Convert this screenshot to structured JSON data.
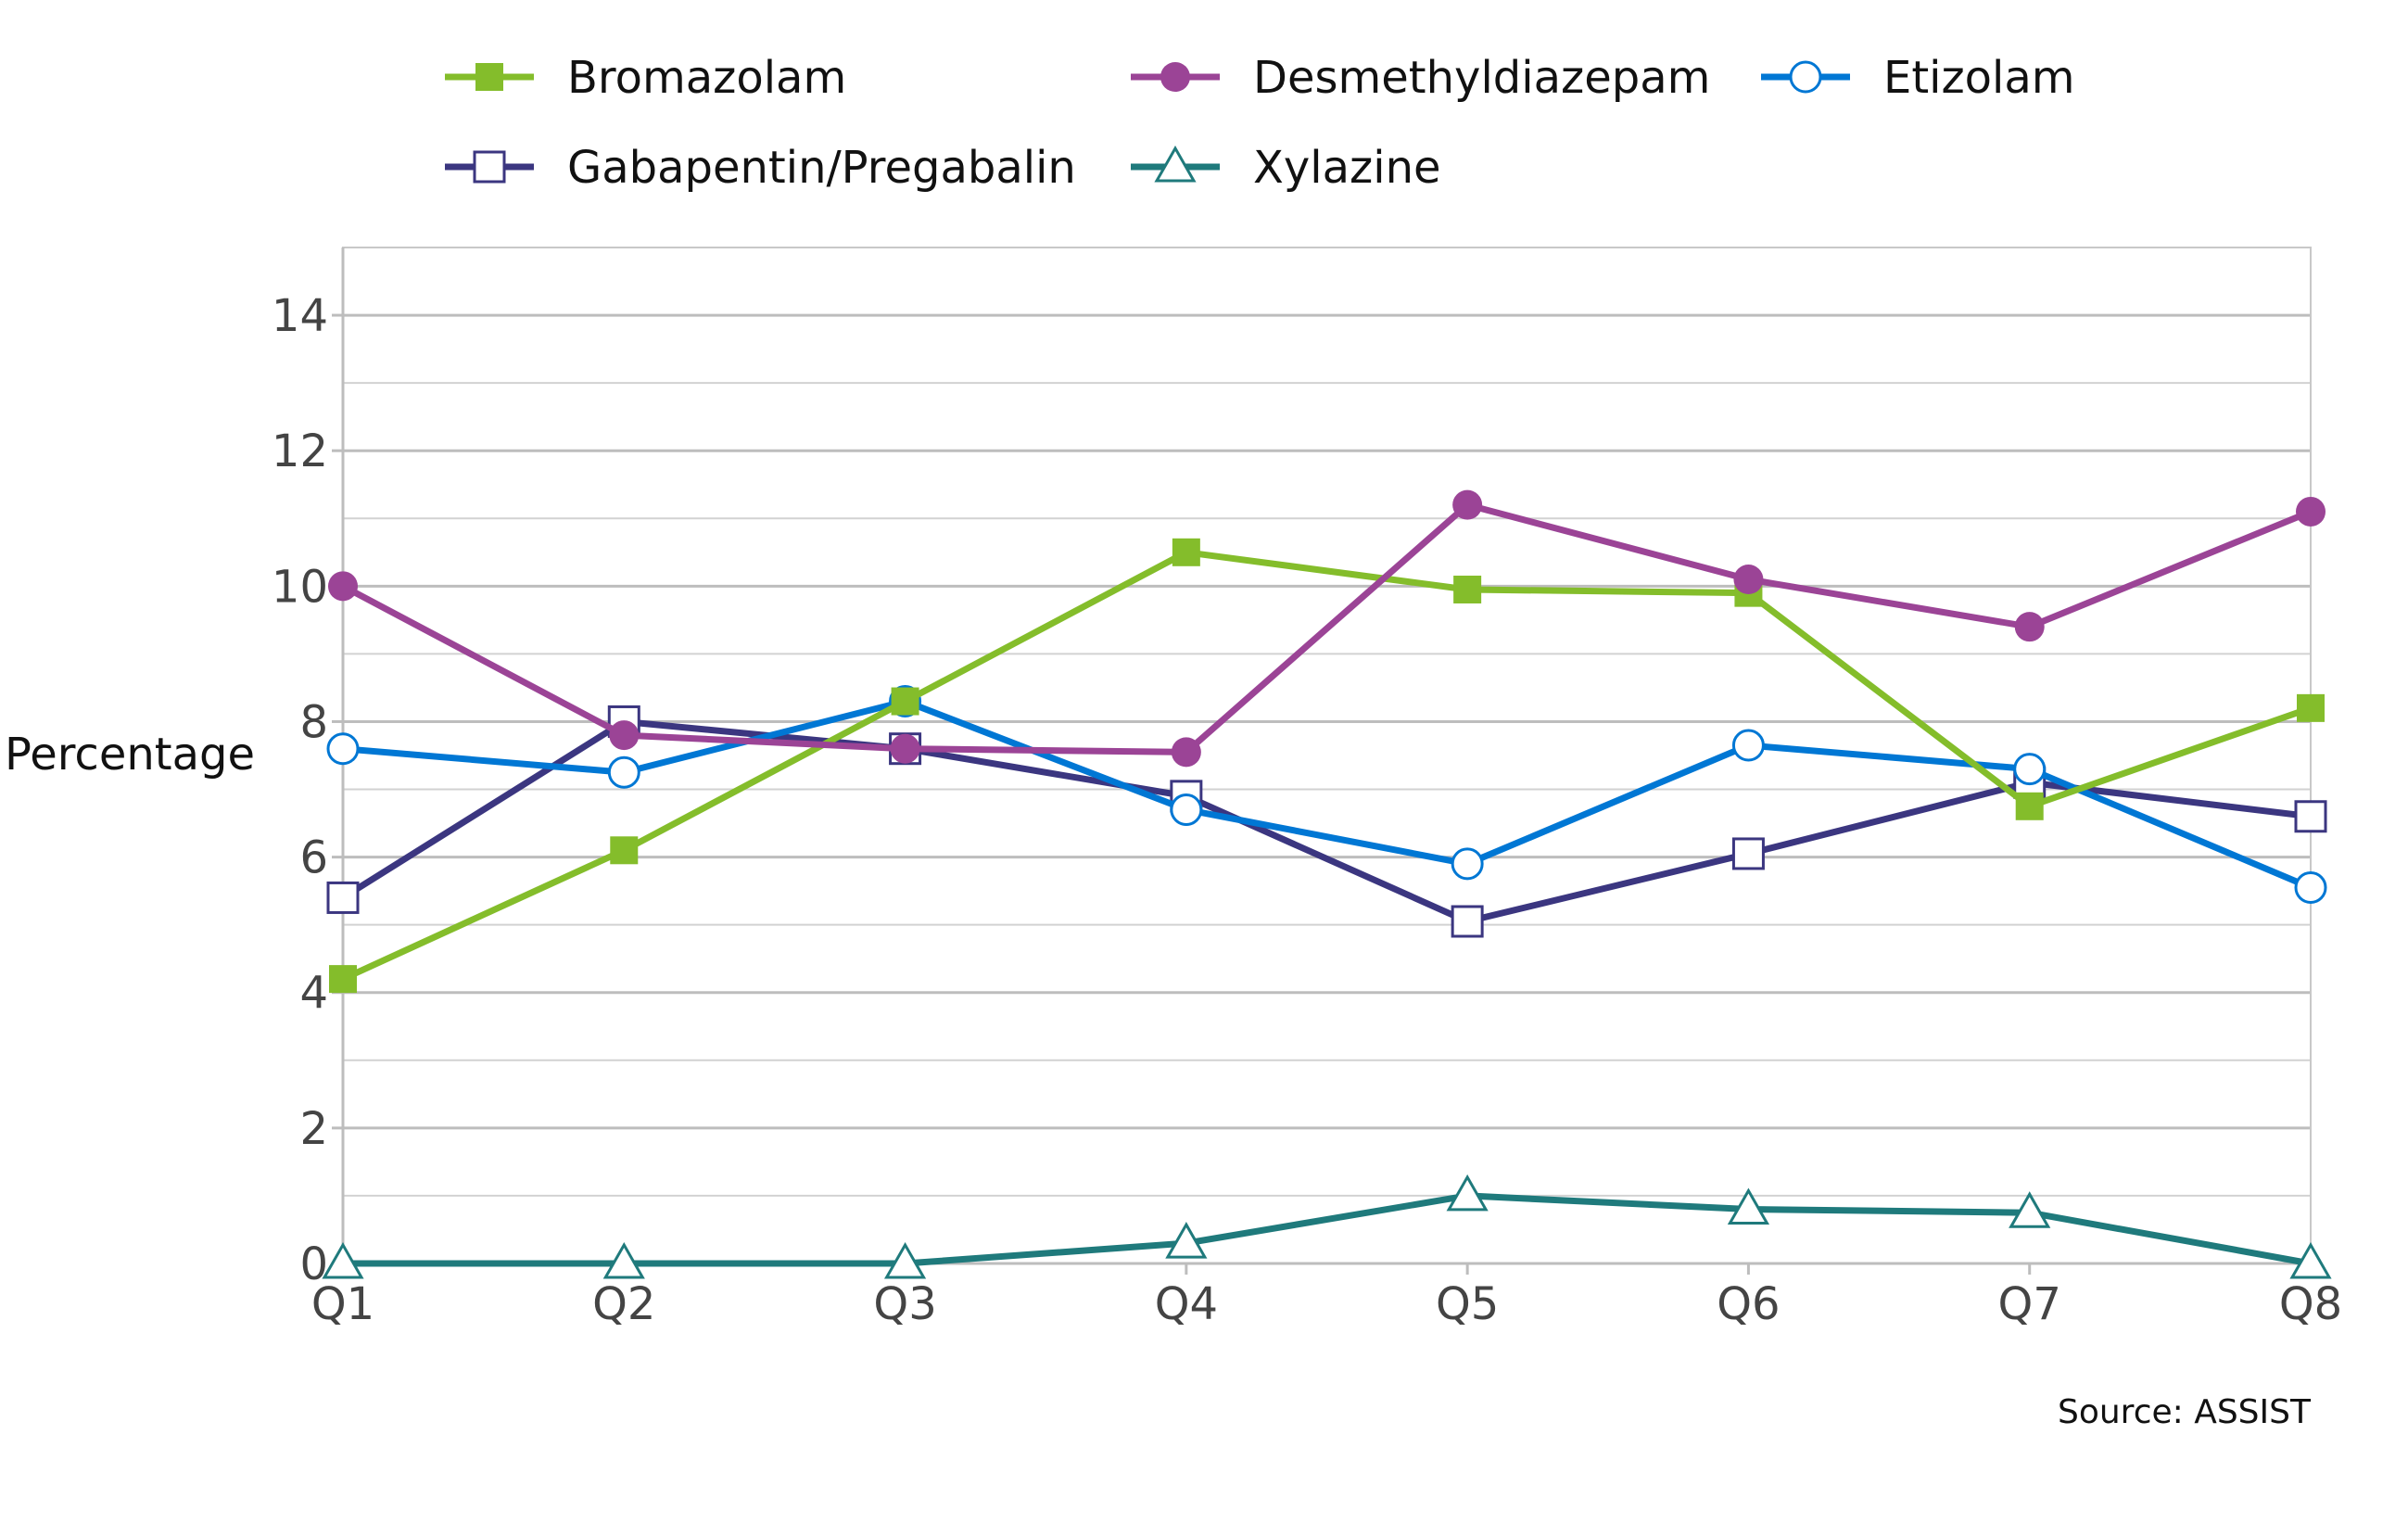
{
  "chart_data": {
    "type": "line",
    "title": "",
    "xlabel": "",
    "ylabel": "Percentage",
    "ylim": [
      0,
      15
    ],
    "yticks": [
      0,
      2,
      4,
      6,
      8,
      10,
      12,
      14
    ],
    "ytick_labels": [
      "0",
      "2",
      "4",
      "6",
      "8",
      "10",
      "12",
      "14"
    ],
    "grid": true,
    "legend_position": "top",
    "categories": [
      "Q1",
      "Q2",
      "Q3",
      "Q4",
      "Q5",
      "Q6",
      "Q7",
      "Q8"
    ],
    "series": [
      {
        "name": "Bromazolam",
        "color": "#84bd2b",
        "marker": "filled-square",
        "values": [
          4.2,
          6.1,
          8.3,
          10.5,
          9.95,
          9.9,
          6.75,
          8.2
        ]
      },
      {
        "name": "Desmethyldiazepam",
        "color": "#9b4496",
        "marker": "filled-circle",
        "values": [
          10.0,
          7.8,
          7.6,
          7.55,
          11.2,
          10.1,
          9.4,
          11.1
        ]
      },
      {
        "name": "Etizolam",
        "color": "#0077d4",
        "marker": "open-circle",
        "values": [
          7.6,
          7.25,
          8.3,
          6.7,
          5.9,
          7.65,
          7.3,
          5.55
        ]
      },
      {
        "name": "Gabapentin/Pregabalin",
        "color": "#3b3680",
        "marker": "open-square",
        "values": [
          5.4,
          8.0,
          7.6,
          6.9,
          5.05,
          6.05,
          7.1,
          6.6
        ]
      },
      {
        "name": "Xylazine",
        "color": "#1f7a7c",
        "marker": "open-triangle",
        "values": [
          0.0,
          0.0,
          0.0,
          0.3,
          1.0,
          0.8,
          0.75,
          0.0
        ]
      }
    ],
    "source": "Source: ASSIST"
  }
}
